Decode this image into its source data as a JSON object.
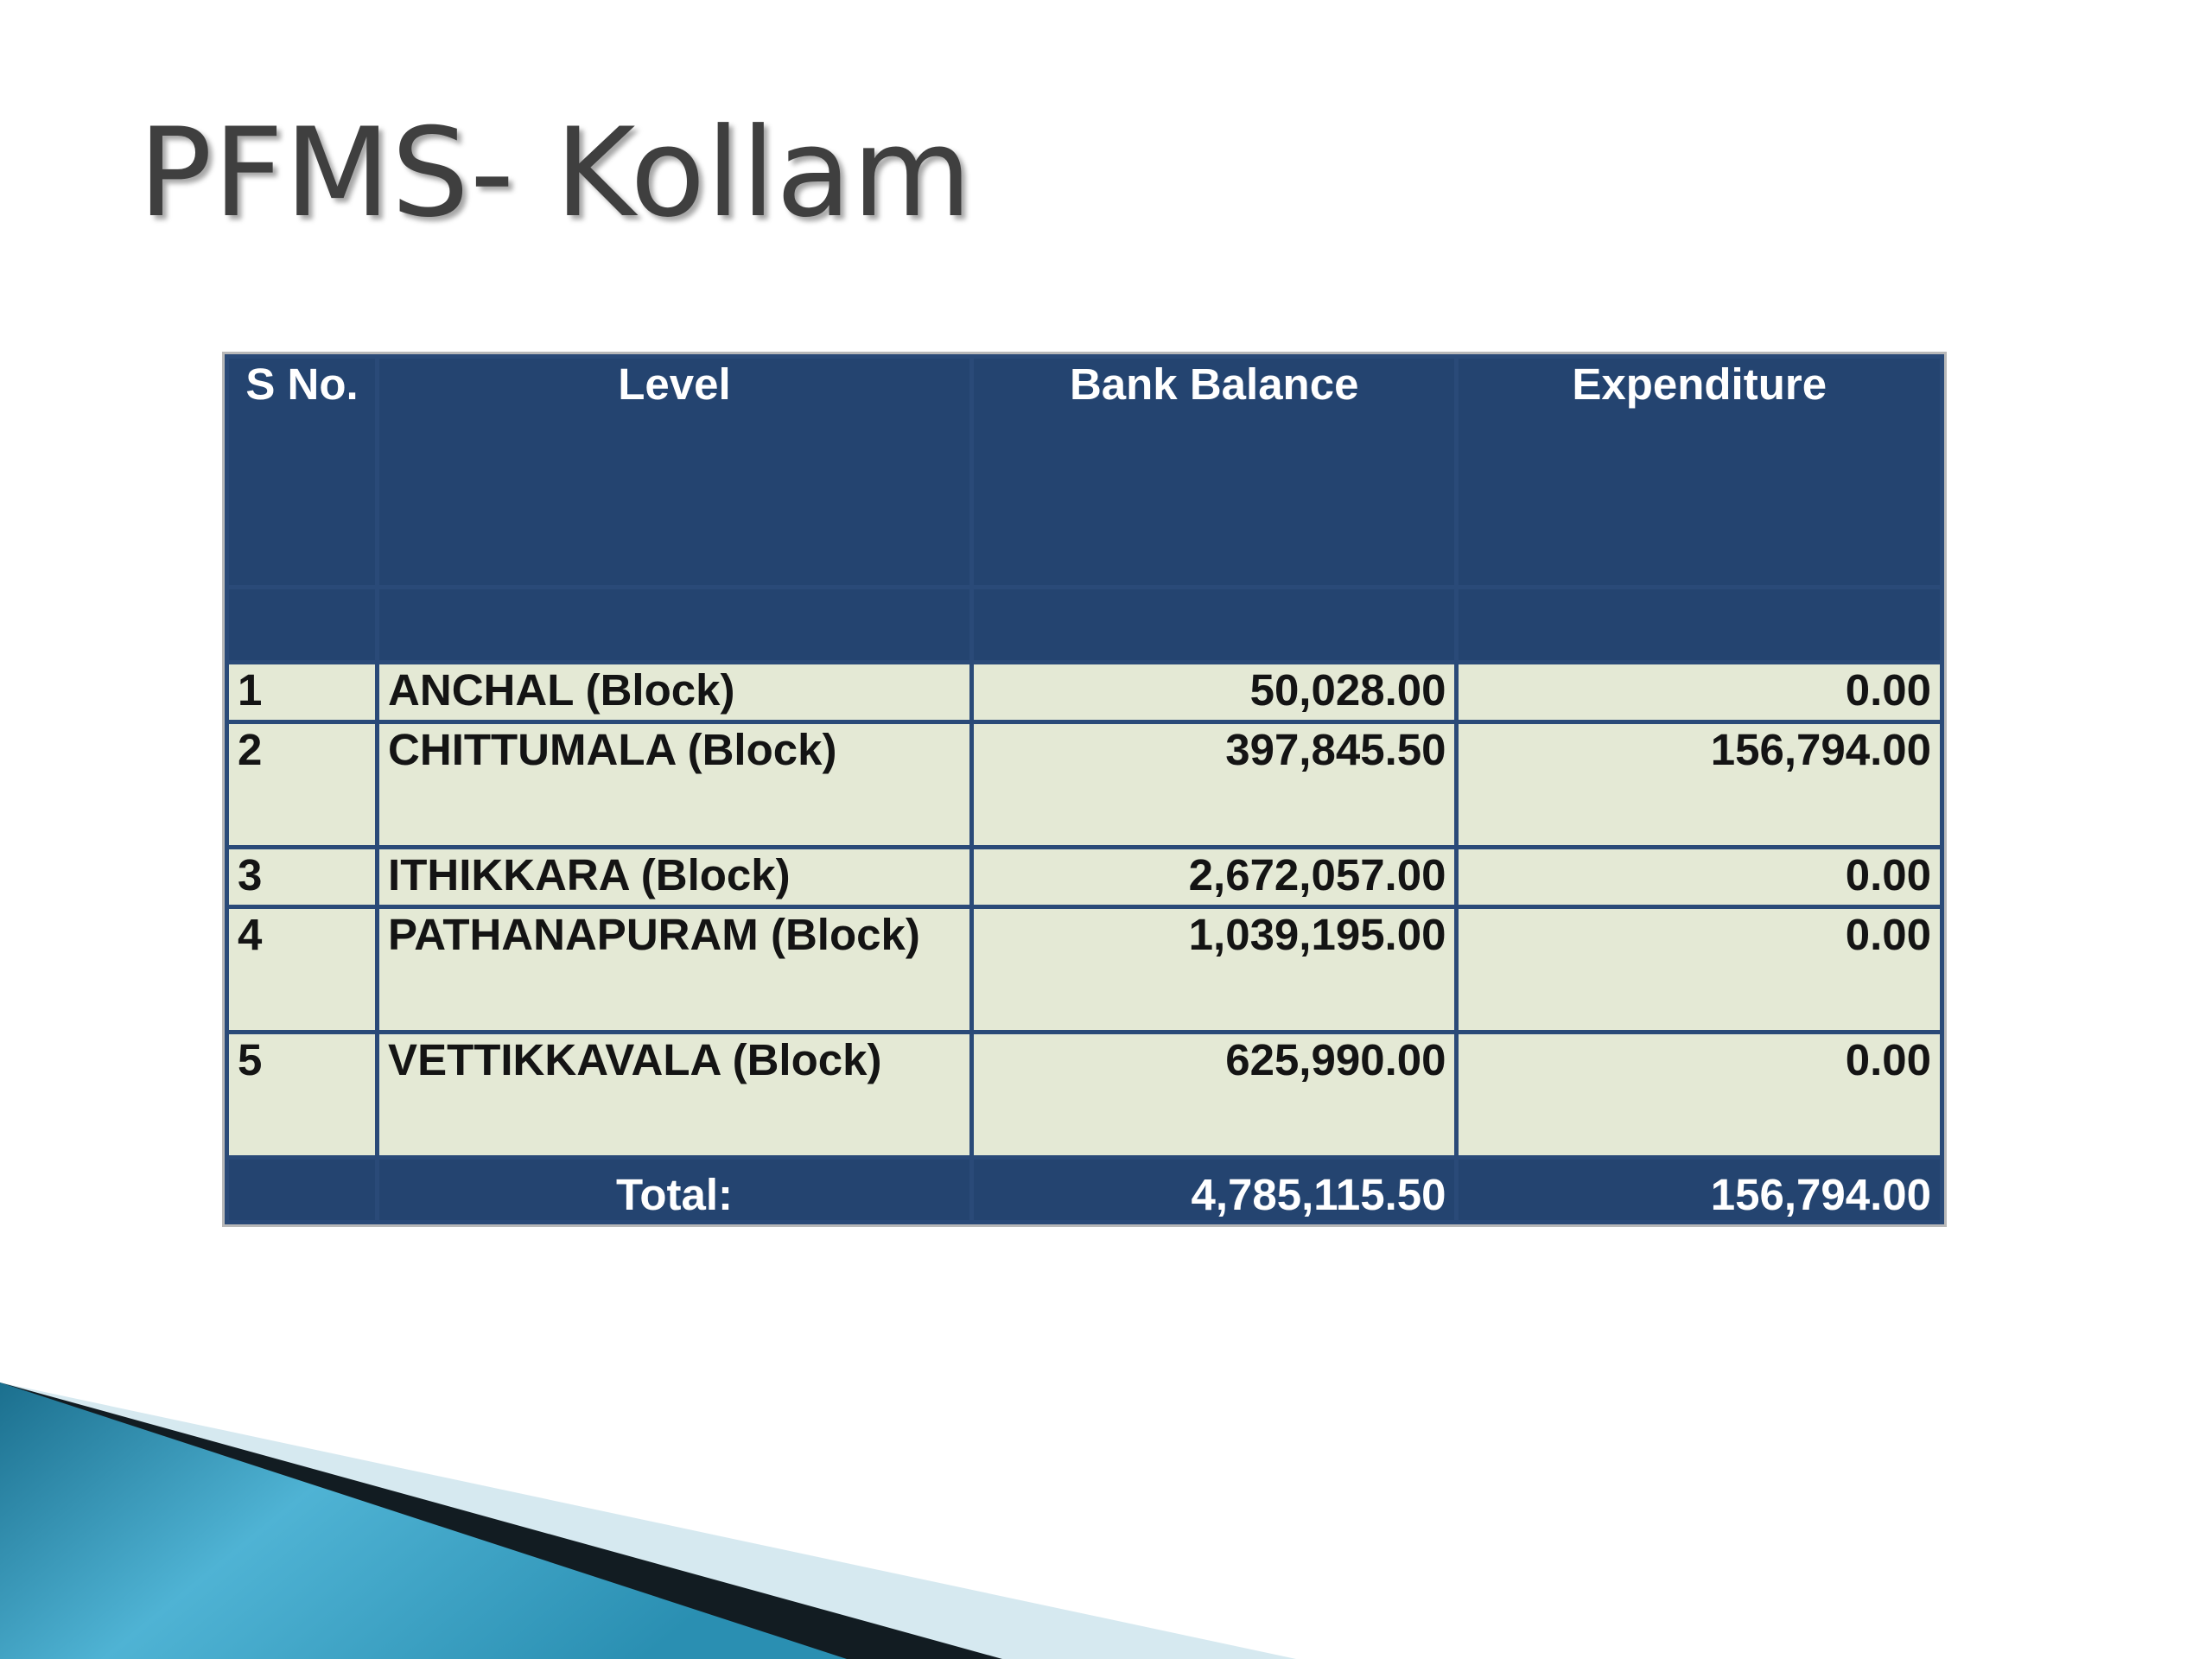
{
  "slide": {
    "title": "PFMS- Kollam"
  },
  "table": {
    "headers": {
      "sno": "S No.",
      "level": "Level",
      "bank_balance": "Bank Balance",
      "expenditure": "Expenditure"
    },
    "rows": [
      {
        "sno": "1",
        "level": "ANCHAL  (Block)",
        "bank_balance": "50,028.00",
        "expenditure": "0.00"
      },
      {
        "sno": "2",
        "level": "CHITTUMALA  (Block)",
        "bank_balance": "397,845.50",
        "expenditure": "156,794.00"
      },
      {
        "sno": "3",
        "level": "ITHIKKARA  (Block)",
        "bank_balance": "2,672,057.00",
        "expenditure": "0.00"
      },
      {
        "sno": "4",
        "level": "PATHANAPURAM  (Block)",
        "bank_balance": "1,039,195.00",
        "expenditure": "0.00"
      },
      {
        "sno": "5",
        "level": "VETTIKKAVALA  (Block)",
        "bank_balance": "625,990.00",
        "expenditure": "0.00"
      }
    ],
    "total": {
      "label": "Total:",
      "bank_balance": "4,785,115.50",
      "expenditure": "156,794.00"
    }
  },
  "colors": {
    "header_bg": "#244470",
    "row_bg": "#e4e9d5",
    "title_text": "#3f3f3f",
    "accent_teal": "#2f97b8"
  }
}
